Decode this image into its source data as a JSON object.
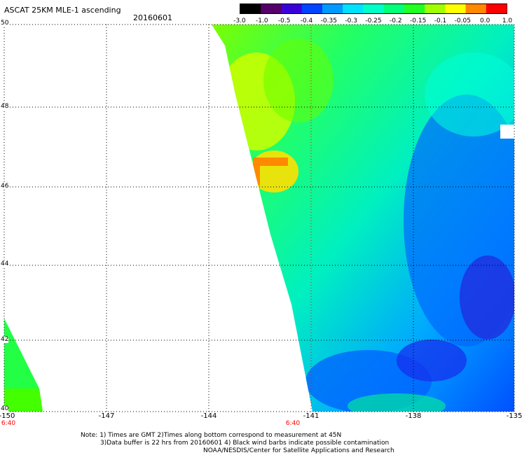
{
  "title": "ASCAT 25KM MLE-1 ascending",
  "date": "20160601",
  "colorbar": {
    "labels": [
      "-3.0",
      "-1.0",
      "-0.5",
      "-0.4",
      "-0.35",
      "-0.3",
      "-0.25",
      "-0.2",
      "-0.15",
      "-0.1",
      "-0.05",
      "0.0",
      "1.0"
    ],
    "colors": [
      "#000000",
      "#55006a",
      "#3a00d8",
      "#0044ff",
      "#0099ff",
      "#00e0ff",
      "#00ffc8",
      "#00ff7a",
      "#22ff22",
      "#a0ff00",
      "#ffff00",
      "#ff8800",
      "#ff0000"
    ]
  },
  "axes": {
    "lat_ticks": [
      "50",
      "48",
      "46",
      "44",
      "42",
      "40"
    ],
    "lon_ticks": [
      "-150",
      "-147",
      "-144",
      "-141",
      "-138",
      "-135"
    ],
    "time_ticks": [
      "6:40",
      "6:40"
    ]
  },
  "notes": {
    "line1": "Note: 1) Times are GMT 2)Times along bottom correspond to measurement at 45N",
    "line2": "3)Data buffer is 22 hrs from 20160601 4) Black wind barbs indicate possible contamination",
    "line3": "NOAA/NESDIS/Center for Satellite Applications and Research"
  }
}
